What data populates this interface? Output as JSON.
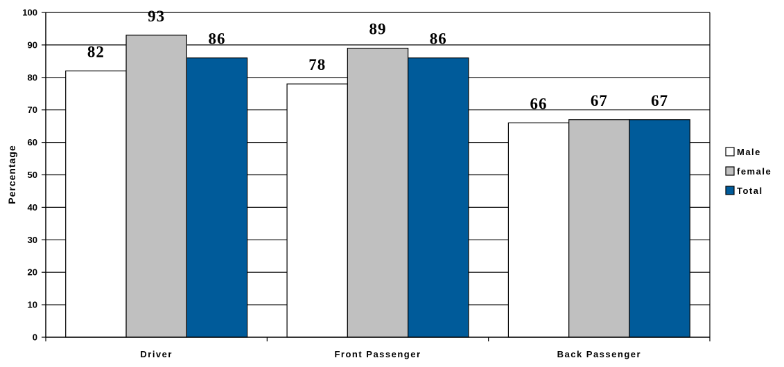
{
  "chart_data": {
    "type": "bar",
    "title": "",
    "xlabel": "",
    "ylabel": "Percentage",
    "ylim": [
      0,
      100
    ],
    "yticks": [
      0,
      10,
      20,
      30,
      40,
      50,
      60,
      70,
      80,
      90,
      100
    ],
    "categories": [
      "Driver",
      "Front Passenger",
      "Back Passenger"
    ],
    "series": [
      {
        "name": "Male",
        "color": "#ffffff",
        "values": [
          82,
          78,
          66
        ]
      },
      {
        "name": "female",
        "color": "#c0c0c0",
        "values": [
          93,
          89,
          67
        ]
      },
      {
        "name": "Total",
        "color": "#005b9a",
        "values": [
          86,
          86,
          67
        ]
      }
    ],
    "data_labels": [
      [
        "82",
        "78",
        "66"
      ],
      [
        "93",
        "89",
        "67"
      ],
      [
        "86",
        "86",
        "67"
      ]
    ],
    "grid": true,
    "legend_position": "right"
  }
}
